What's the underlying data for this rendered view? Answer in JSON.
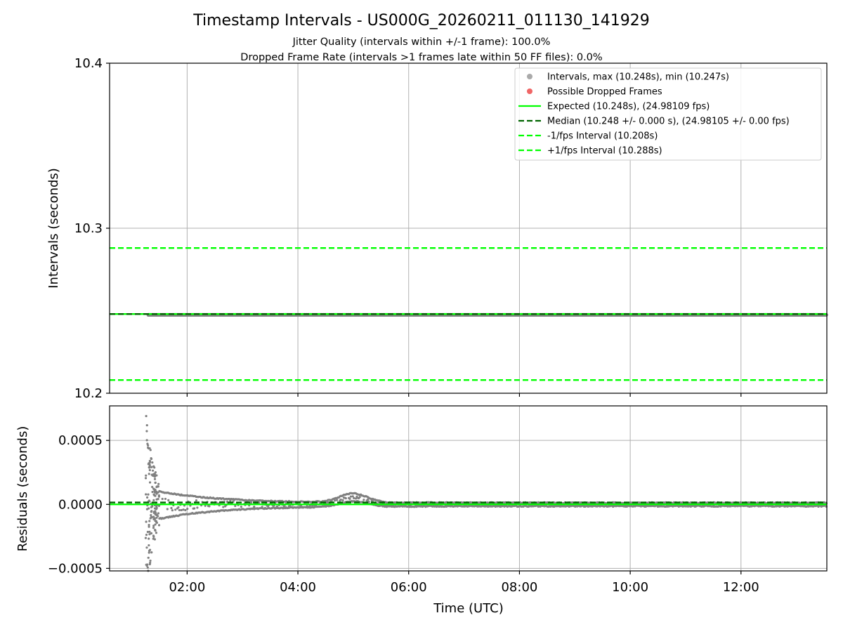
{
  "title": "Timestamp Intervals - US000G_20260211_011130_141929",
  "subtitle_1": "Jitter Quality (intervals within +/-1 frame): 100.0%",
  "subtitle_2": "Dropped Frame Rate (intervals >1 frames late within 50 FF files): 0.0%",
  "chart_data": [
    {
      "type": "scatter",
      "panel": "top",
      "ylabel": "Intervals (seconds)",
      "ylim": [
        10.2,
        10.4
      ],
      "yticks": [
        "10.2",
        "10.3",
        "10.4"
      ],
      "ytick_values": [
        10.2,
        10.3,
        10.4
      ],
      "xlim_hours": [
        0.6,
        13.55
      ],
      "grid": true,
      "legend_position": "top-right",
      "series": [
        {
          "name": "Intervals, max (10.248s), min (10.247s)",
          "kind": "scatter",
          "color": "#808080",
          "x_start_hours": 1.3,
          "x_end_hours": 13.55,
          "min": 10.247,
          "max": 10.248
        },
        {
          "name": "Possible Dropped Frames",
          "kind": "scatter",
          "color": "#ff0000",
          "count": 0
        },
        {
          "name": "Expected (10.248s), (24.98109 fps)",
          "kind": "hline",
          "value": 10.248,
          "color": "#00ff00",
          "style": "solid"
        },
        {
          "name": "Median (10.248 +/- 0.000 s), (24.98105 +/- 0.00 fps)",
          "kind": "hline",
          "value": 10.248,
          "color": "#006400",
          "style": "dashed"
        },
        {
          "name": "-1/fps Interval (10.208s)",
          "kind": "hline",
          "value": 10.208,
          "color": "#00ff00",
          "style": "dashed"
        },
        {
          "name": "+1/fps Interval (10.288s)",
          "kind": "hline",
          "value": 10.288,
          "color": "#00ff00",
          "style": "dashed"
        }
      ],
      "legend": [
        "Intervals, max (10.248s), min (10.247s)",
        "Possible Dropped Frames",
        "Expected (10.248s), (24.98109 fps)",
        "Median (10.248 +/- 0.000 s), (24.98105 +/- 0.00 fps)",
        "-1/fps Interval (10.208s)",
        "+1/fps Interval (10.288s)"
      ]
    },
    {
      "type": "scatter",
      "panel": "bottom",
      "ylabel": "Residuals (seconds)",
      "xlabel": "Time (UTC)",
      "ylim": [
        -0.00052,
        0.00077
      ],
      "yticks": [
        "−0.0005",
        "0.0000",
        "0.0005"
      ],
      "ytick_values": [
        -0.0005,
        0.0,
        0.0005
      ],
      "xlim_hours": [
        0.6,
        13.55
      ],
      "xticks": [
        "02:00",
        "04:00",
        "06:00",
        "08:00",
        "10:00",
        "12:00"
      ],
      "xtick_values_hours": [
        2,
        4,
        6,
        8,
        10,
        12
      ],
      "grid": true,
      "series": [
        {
          "name": "Residuals",
          "kind": "scatter",
          "color": "#808080",
          "x_start_hours": 1.25,
          "x_end_hours": 13.55,
          "peak_max": 0.00074,
          "peak_min": -0.00047,
          "bump_center_hours": 5.0,
          "bump_value": 7e-05
        },
        {
          "name": "Expected",
          "kind": "hline",
          "value": 0.0,
          "color": "#00ff00",
          "style": "solid"
        },
        {
          "name": "Median",
          "kind": "hline",
          "value": 1.5e-05,
          "color": "#006400",
          "style": "dashed"
        }
      ]
    }
  ]
}
